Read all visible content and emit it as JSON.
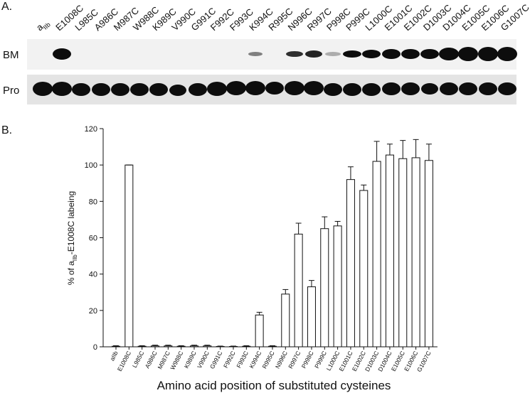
{
  "panel_a": {
    "label": "A.",
    "rows": [
      "BM",
      "Pro"
    ],
    "lanes": [
      "a",
      "E1008C",
      "L985C",
      "A986C",
      "M987C",
      "W988C",
      "K989C",
      "V990C",
      "G991C",
      "F992C",
      "F993C",
      "K994C",
      "R995C",
      "N996C",
      "R997C",
      "P998C",
      "P999C",
      "L1000C",
      "E1001C",
      "E1002C",
      "D1003C",
      "D1004C",
      "E1005C",
      "E1006C",
      "G1007C"
    ],
    "lane_subscript": "IIb"
  },
  "chart_data": {
    "type": "bar",
    "panel_label": "B.",
    "y_label": [
      "% of a",
      "IIb",
      "-E1008C labeing"
    ],
    "x_label": "Amino acid position of substituted cysteines",
    "categories": [
      "aIIb",
      "E1008C",
      "L985C",
      "A986C",
      "M987C",
      "W988C",
      "K989C",
      "V990C",
      "G991C",
      "F992C",
      "F993C",
      "K994C",
      "R995C",
      "N996C",
      "R997C",
      "P998C",
      "P999C",
      "L1000C",
      "E1001C",
      "E1002C",
      "D1003C",
      "D1004C",
      "E1005C",
      "E1006C",
      "G1007C"
    ],
    "values": [
      0.3,
      100,
      0.3,
      0.5,
      0.5,
      0.3,
      0.5,
      0.5,
      0.2,
      0.2,
      0.3,
      17.5,
      0.3,
      29,
      62,
      33,
      65,
      66.5,
      92,
      86,
      102,
      105.5,
      103.5,
      104,
      102.5
    ],
    "errors": [
      0.3,
      0,
      0.3,
      0.4,
      0.4,
      0.3,
      0.4,
      0.4,
      0.2,
      0.2,
      0.3,
      1.5,
      0.3,
      2.5,
      6,
      3.5,
      6.5,
      2.5,
      7,
      3,
      11,
      6,
      10,
      10,
      9
    ],
    "color": "#ffffff",
    "ylim": [
      0,
      120
    ],
    "yticks": [
      0,
      20,
      40,
      60,
      80,
      100,
      120
    ]
  }
}
